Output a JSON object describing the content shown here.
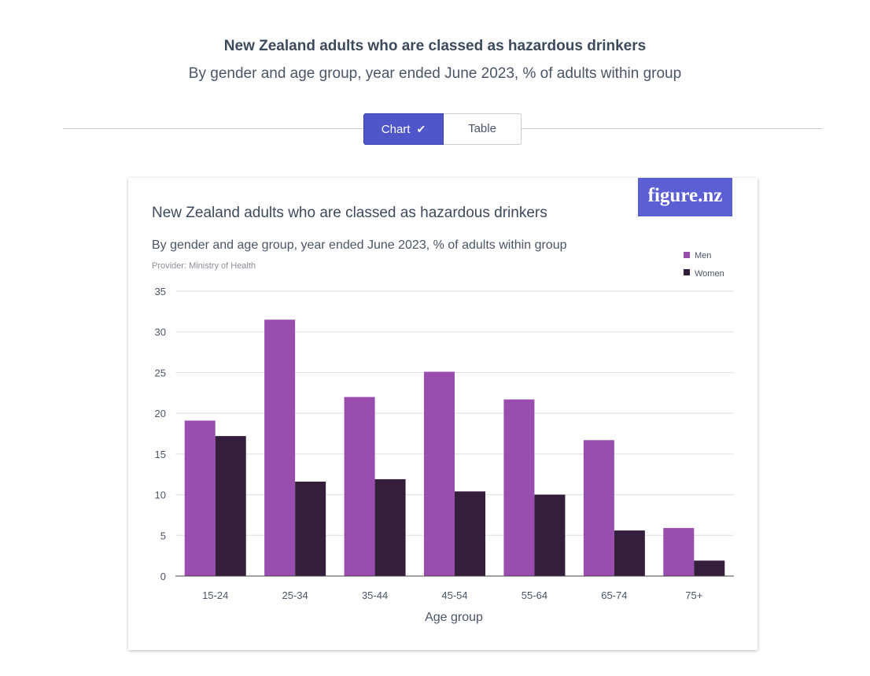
{
  "page": {
    "title": "New Zealand adults who are classed as hazardous drinkers",
    "subtitle": "By gender and age group, year ended June 2023, % of adults within group"
  },
  "toggle": {
    "chart_label": "Chart",
    "table_label": "Table",
    "selected": "Chart"
  },
  "card": {
    "logo_text": "figure.nz",
    "provider": "Provider: Ministry of Health"
  },
  "colors": {
    "men": "#994dae",
    "women": "#341e3b",
    "accent": "#4f56c9",
    "logo_bg": "#5b5fd3"
  },
  "chart_data": {
    "type": "bar",
    "title": "New Zealand adults who are classed as hazardous drinkers",
    "subtitle": "By gender and age group, year ended June 2023, % of adults within group",
    "xlabel": "Age group",
    "ylabel": "",
    "categories": [
      "15-24",
      "25-34",
      "35-44",
      "45-54",
      "55-64",
      "65-74",
      "75+"
    ],
    "series": [
      {
        "name": "Men",
        "values": [
          19.1,
          31.5,
          22.0,
          25.1,
          21.7,
          16.7,
          5.9
        ]
      },
      {
        "name": "Women",
        "values": [
          17.2,
          11.6,
          11.9,
          10.4,
          10.0,
          5.6,
          1.9
        ]
      }
    ],
    "ylim": [
      0,
      35
    ],
    "yticks": [
      0,
      5,
      10,
      15,
      20,
      25,
      30,
      35
    ],
    "grid": true,
    "legend_position": "top-right"
  }
}
